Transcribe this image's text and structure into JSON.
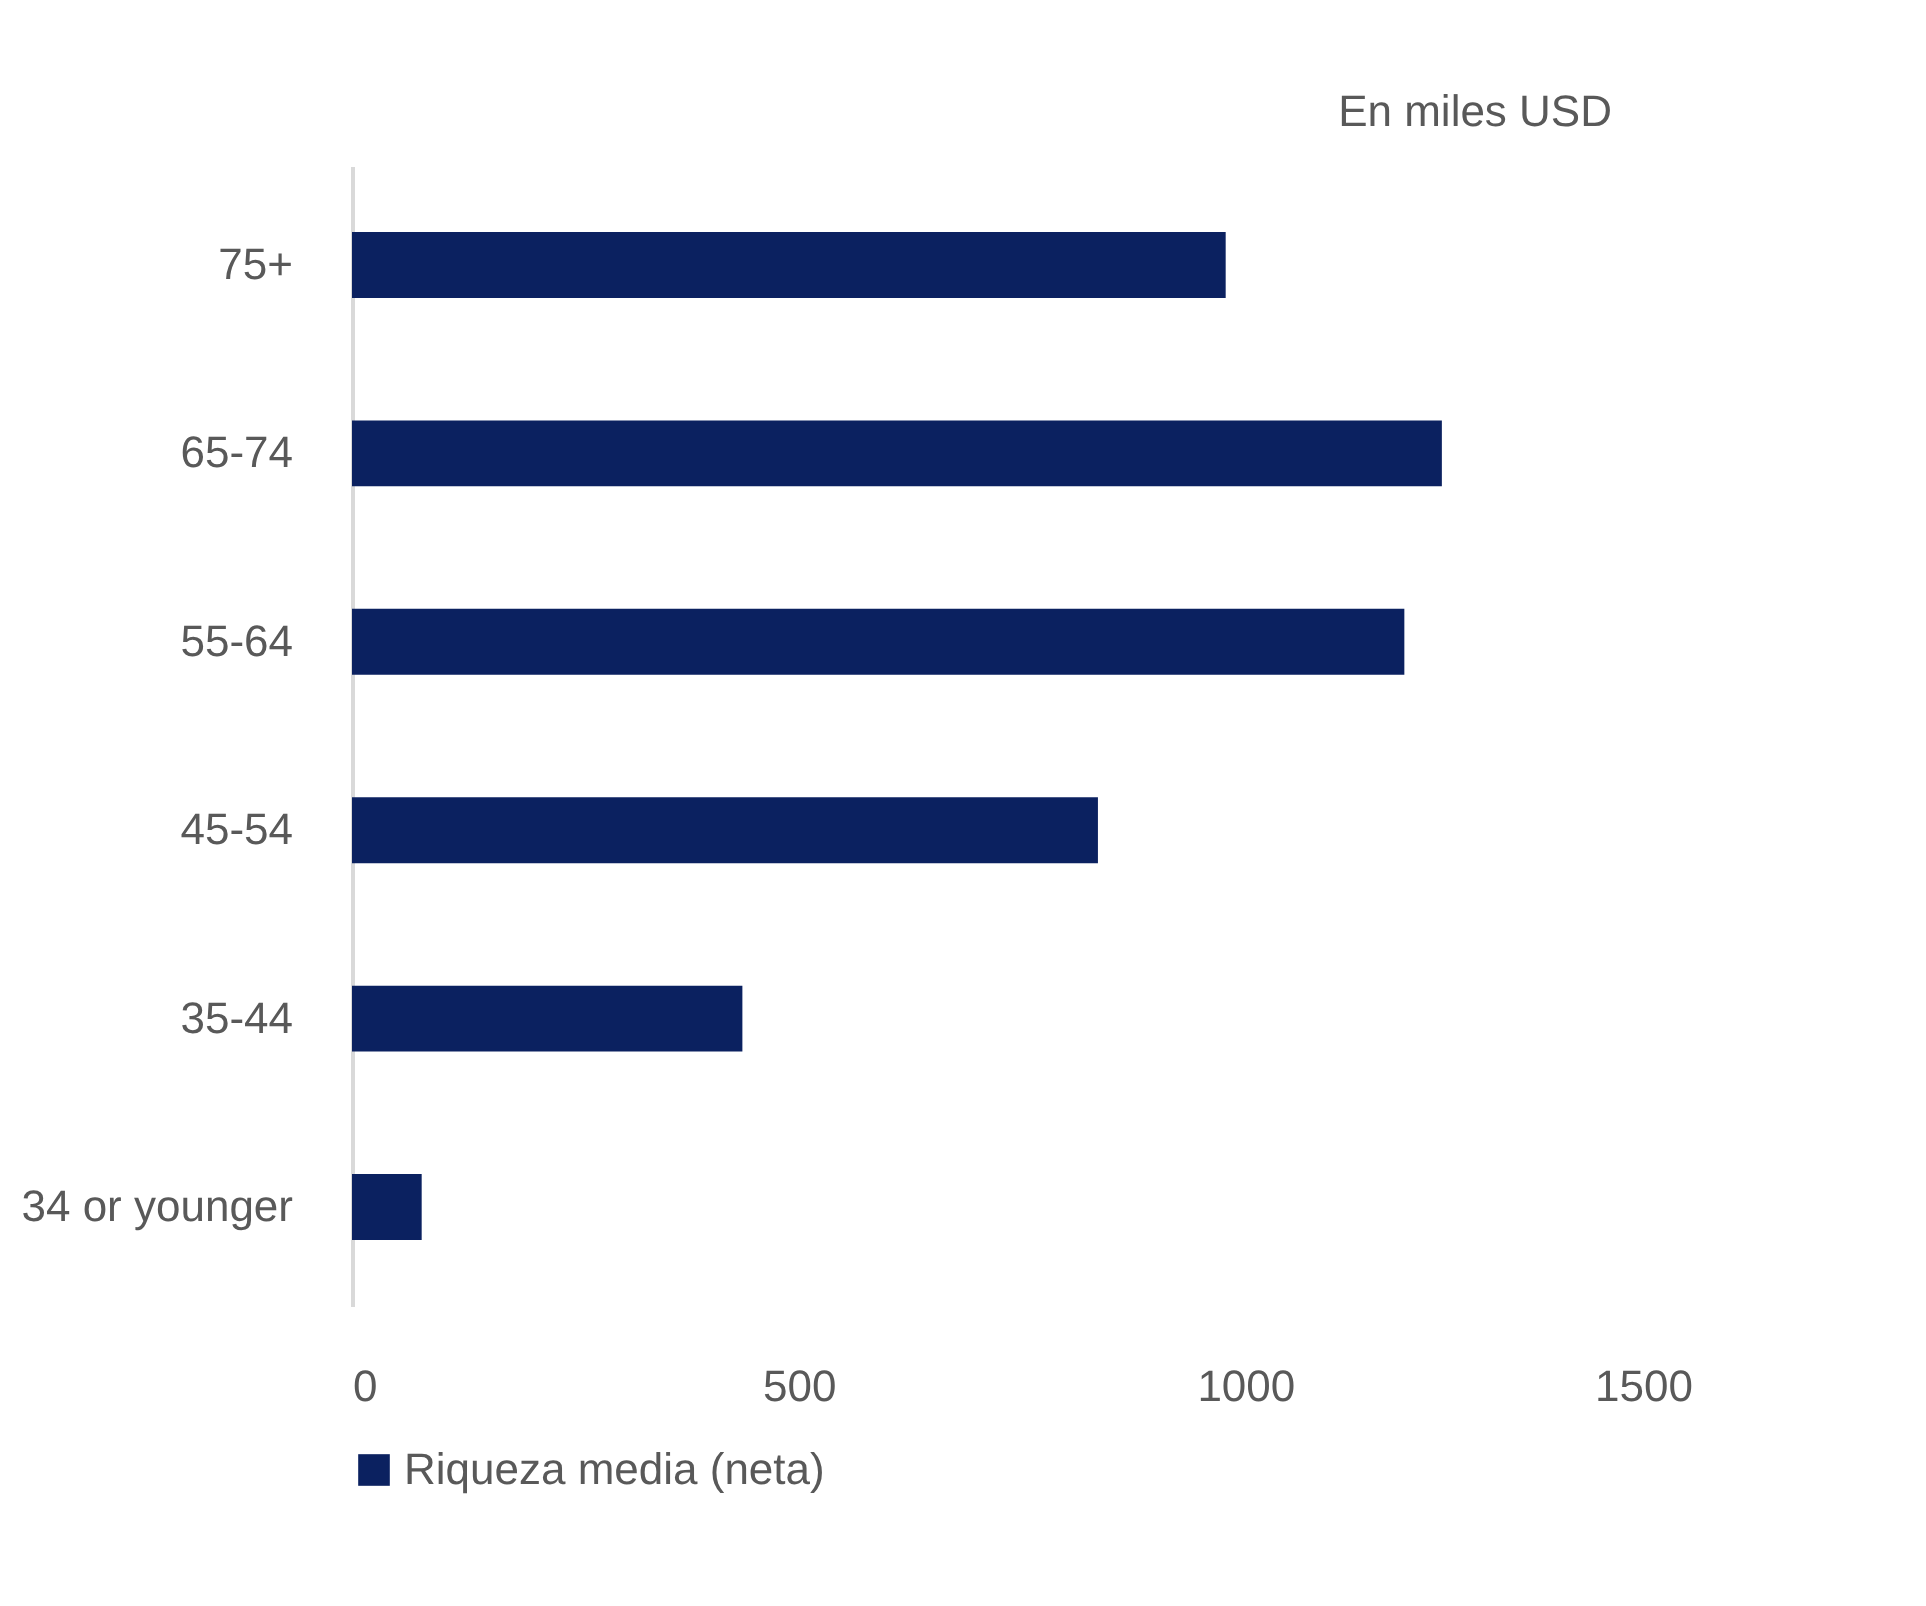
{
  "chart_data": {
    "type": "bar",
    "orientation": "horizontal",
    "categories": [
      "75+",
      "65-74",
      "55-64",
      "45-54",
      "35-44",
      "34 or younger"
    ],
    "series": [
      {
        "name": "Riqueza media (neta)",
        "color": "#0b2160",
        "values": [
          978,
          1220,
          1178,
          835,
          437,
          78
        ]
      }
    ],
    "xlim": [
      0,
      1500
    ],
    "xticks": [
      0,
      500,
      1000,
      1500
    ],
    "grid": false,
    "legend": "bottom",
    "annotations": [
      "En miles USD"
    ]
  }
}
